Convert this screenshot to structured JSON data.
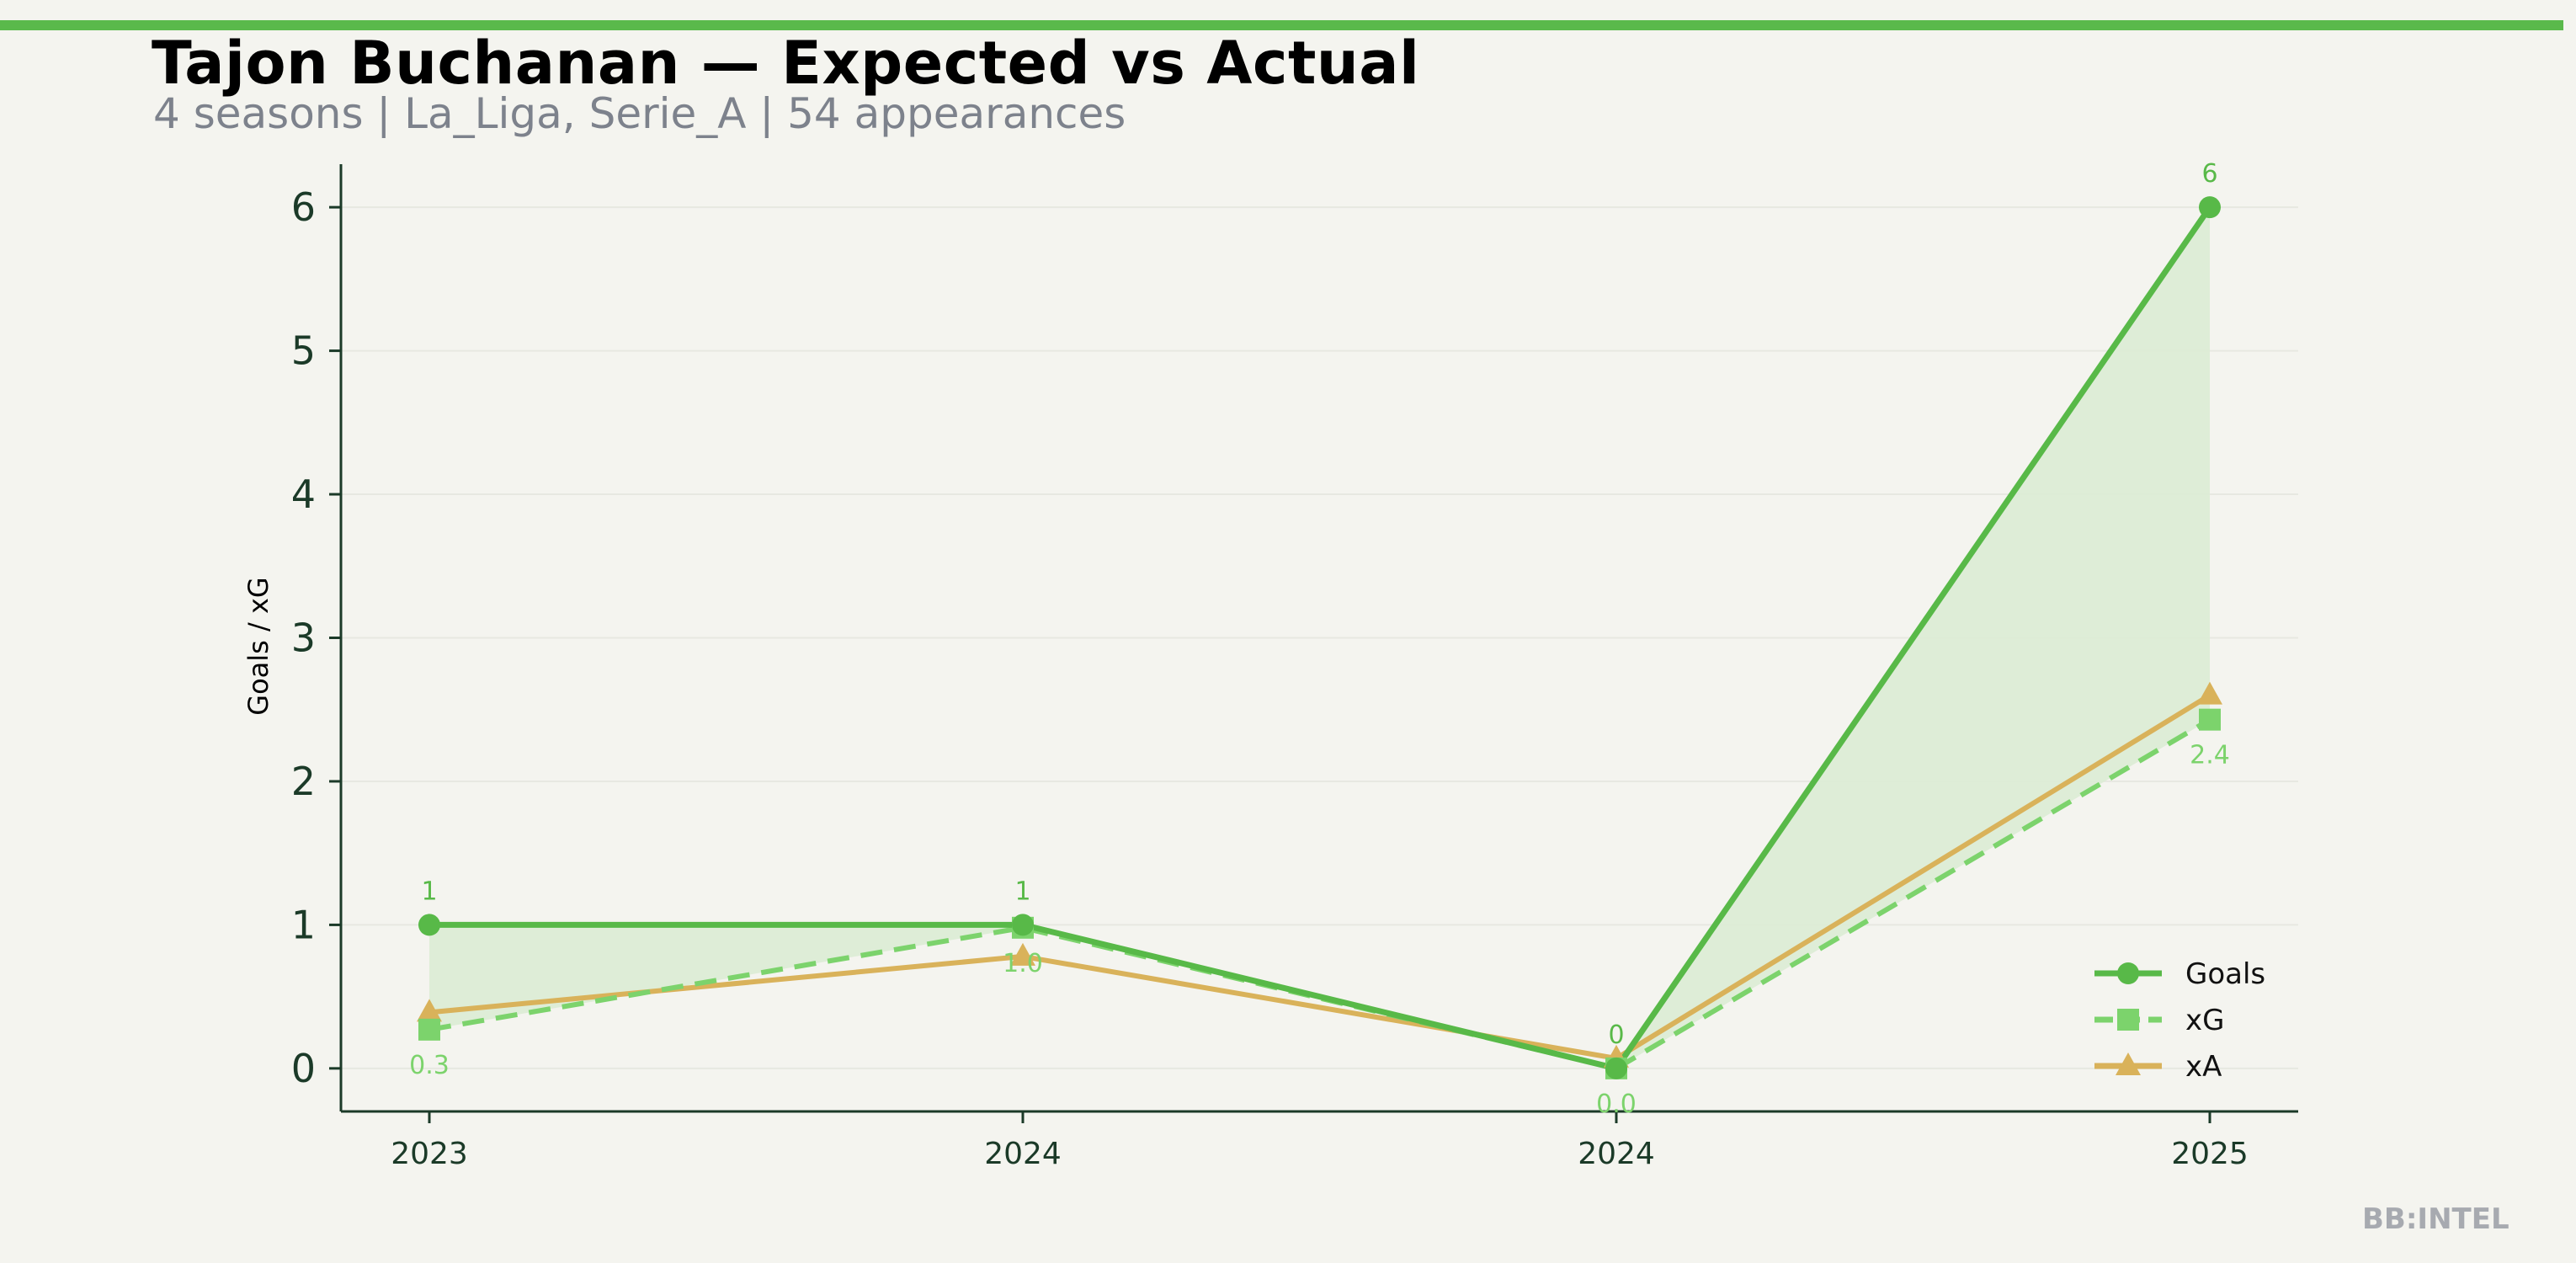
{
  "header": {
    "title": "Tajon Buchanan — Expected vs Actual",
    "subtitle": "4 seasons | La_Liga, Serie_A | 54 appearances"
  },
  "watermark": "BB:INTEL",
  "colors": {
    "goals": "#58b948",
    "xg": "#7cd36c",
    "xa": "#d9b25a",
    "fill": "#dcecd5",
    "axis": "#1b3a28",
    "accent": "#5ab94b"
  },
  "chart_data": {
    "type": "line",
    "categories": [
      "2023",
      "2024",
      "2024",
      "2025"
    ],
    "ylabel": "Goals / xG",
    "xlabel": "",
    "ylim": [
      -0.3,
      6.3
    ],
    "yticks": [
      0,
      1,
      2,
      3,
      4,
      5,
      6
    ],
    "grid": true,
    "legend_position": "bottom-right",
    "series": [
      {
        "name": "Goals",
        "values": [
          1,
          1,
          0,
          6
        ],
        "marker": "circle",
        "style": "solid",
        "labels": [
          "1",
          "1",
          "0",
          "6"
        ]
      },
      {
        "name": "xG",
        "values": [
          0.27,
          0.98,
          0.0,
          2.43
        ],
        "marker": "square",
        "style": "dashed",
        "labels": [
          "0.3",
          "1.0",
          "0.0",
          "2.4"
        ]
      },
      {
        "name": "xA",
        "values": [
          0.39,
          0.78,
          0.07,
          2.6
        ],
        "marker": "triangle",
        "style": "solid"
      }
    ]
  }
}
